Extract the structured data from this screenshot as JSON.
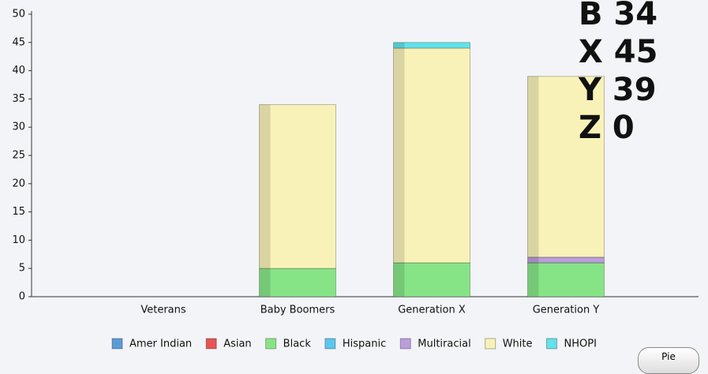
{
  "chart_data": {
    "type": "stacked_bar",
    "categories": [
      "Veterans",
      "Baby Boomers",
      "Generation X",
      "Generation Y"
    ],
    "series": [
      {
        "name": "Amer Indian",
        "color": "#5b9bd5",
        "values": [
          0,
          0,
          0,
          0
        ]
      },
      {
        "name": "Asian",
        "color": "#e85454",
        "values": [
          0,
          0,
          0,
          0
        ]
      },
      {
        "name": "Black",
        "color": "#86e486",
        "values": [
          0,
          5,
          6,
          6
        ]
      },
      {
        "name": "Hispanic",
        "color": "#5cc6ee",
        "values": [
          0,
          0,
          0,
          0
        ]
      },
      {
        "name": "Multiracial",
        "color": "#bb9ddb",
        "values": [
          0,
          0,
          0,
          1
        ]
      },
      {
        "name": "White",
        "color": "#f8f2b8",
        "values": [
          0,
          29,
          38,
          32
        ]
      },
      {
        "name": "NHOPI",
        "color": "#62e2ea",
        "values": [
          0,
          0,
          1,
          0
        ]
      }
    ],
    "ylim": [
      0,
      50
    ],
    "yticks": [
      0,
      5,
      10,
      15,
      20,
      25,
      30,
      35,
      40,
      45,
      50
    ],
    "annotations": [
      {
        "text": "B 34",
        "color": "#f9e84a"
      },
      {
        "text": "X 45",
        "color": "#4fdc4f"
      },
      {
        "text": "Y 39",
        "color": "#1e88e5"
      },
      {
        "text": "Z 0",
        "color": "#000000"
      }
    ]
  },
  "button": "Pie"
}
